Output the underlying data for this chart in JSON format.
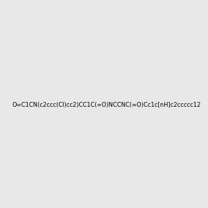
{
  "smiles": "O=C1CN(c2ccc(Cl)cc2)CC1C(=O)NCCNC(=O)Cc1c[nH]c2ccccc12",
  "image_size": 300,
  "background_color": "#e8e8e8"
}
